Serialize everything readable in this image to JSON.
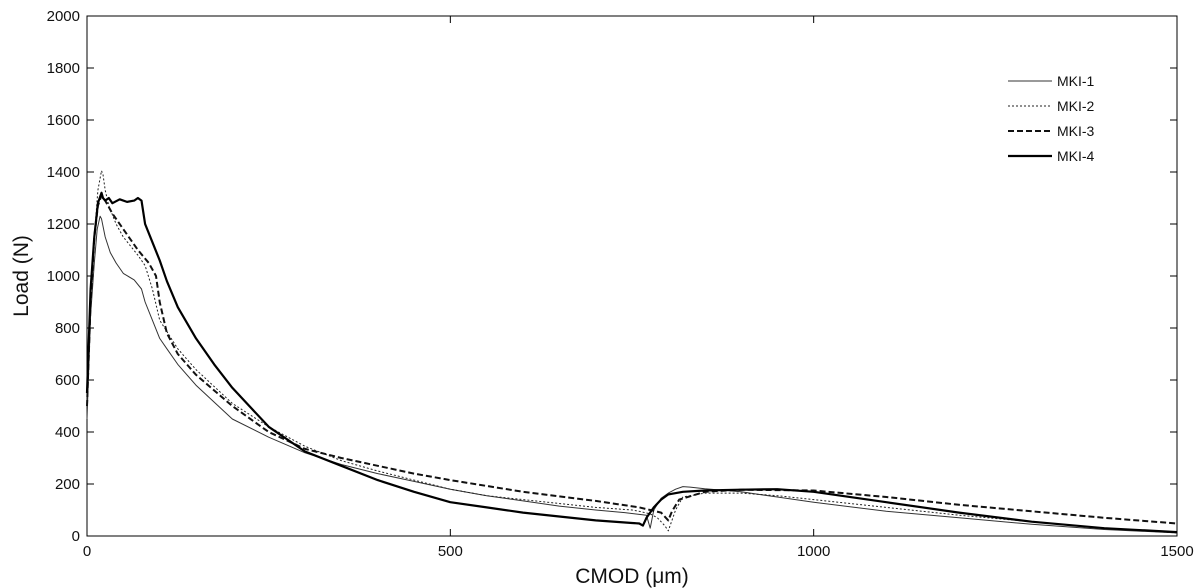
{
  "chart_data": {
    "type": "line",
    "title": "",
    "xlabel": "CMOD (μm)",
    "ylabel": "Load (N)",
    "xlim": [
      0,
      1500
    ],
    "ylim": [
      0,
      2000
    ],
    "xticks": [
      0,
      500,
      1000,
      1500
    ],
    "yticks": [
      0,
      200,
      400,
      600,
      800,
      1000,
      1200,
      1400,
      1600,
      1800,
      2000
    ],
    "grid": false,
    "legend_position": "top-right",
    "series": [
      {
        "name": "MKI-1",
        "style": "thin-solid",
        "x": [
          0,
          5,
          10,
          14,
          18,
          20,
          25,
          32,
          40,
          50,
          65,
          75,
          80,
          90,
          100,
          110,
          125,
          150,
          200,
          250,
          300,
          350,
          400,
          450,
          500,
          550,
          600,
          650,
          700,
          740,
          770,
          775,
          780,
          790,
          800,
          810,
          820,
          830,
          850,
          900,
          950,
          1000,
          1100,
          1200,
          1300,
          1400,
          1500
        ],
        "y": [
          450,
          850,
          1050,
          1180,
          1230,
          1220,
          1150,
          1090,
          1050,
          1010,
          985,
          950,
          900,
          830,
          760,
          720,
          660,
          580,
          450,
          380,
          320,
          275,
          240,
          210,
          180,
          155,
          135,
          115,
          100,
          90,
          80,
          30,
          100,
          145,
          165,
          180,
          190,
          188,
          182,
          170,
          150,
          130,
          95,
          70,
          45,
          25,
          12
        ]
      },
      {
        "name": "MKI-2",
        "style": "dotted",
        "x": [
          0,
          5,
          10,
          15,
          20,
          22,
          25,
          30,
          40,
          50,
          70,
          80,
          90,
          100,
          125,
          150,
          200,
          250,
          300,
          350,
          400,
          450,
          500,
          550,
          600,
          650,
          700,
          750,
          760,
          775,
          785,
          795,
          800,
          810,
          820,
          850,
          900,
          950,
          1000,
          1100,
          1200,
          1300,
          1400,
          1500
        ],
        "y": [
          500,
          900,
          1150,
          1330,
          1405,
          1390,
          1330,
          1270,
          1200,
          1150,
          1080,
          1040,
          950,
          830,
          720,
          640,
          510,
          420,
          345,
          290,
          250,
          215,
          180,
          155,
          140,
          125,
          110,
          100,
          95,
          85,
          70,
          40,
          20,
          100,
          150,
          165,
          165,
          155,
          140,
          110,
          80,
          55,
          30,
          12
        ]
      },
      {
        "name": "MKI-3",
        "style": "dashed",
        "x": [
          0,
          5,
          10,
          15,
          20,
          25,
          35,
          50,
          70,
          85,
          95,
          100,
          110,
          125,
          150,
          200,
          250,
          300,
          350,
          400,
          450,
          500,
          600,
          700,
          760,
          775,
          790,
          800,
          805,
          815,
          850,
          900,
          1000,
          1100,
          1200,
          1300,
          1400,
          1500
        ],
        "y": [
          500,
          900,
          1150,
          1270,
          1310,
          1290,
          1240,
          1180,
          1100,
          1050,
          1000,
          900,
          780,
          700,
          620,
          500,
          400,
          335,
          300,
          270,
          240,
          215,
          170,
          135,
          110,
          100,
          90,
          60,
          95,
          140,
          170,
          178,
          175,
          150,
          120,
          95,
          70,
          48
        ]
      },
      {
        "name": "MKI-4",
        "style": "thick-solid",
        "x": [
          0,
          5,
          10,
          15,
          20,
          22,
          25,
          30,
          35,
          45,
          55,
          65,
          70,
          75,
          80,
          90,
          100,
          110,
          125,
          150,
          175,
          200,
          250,
          300,
          350,
          400,
          450,
          500,
          550,
          600,
          650,
          700,
          750,
          760,
          765,
          770,
          780,
          790,
          800,
          820,
          850,
          900,
          950,
          1000,
          1100,
          1200,
          1300,
          1400,
          1500
        ],
        "y": [
          550,
          950,
          1150,
          1280,
          1320,
          1300,
          1290,
          1300,
          1280,
          1295,
          1285,
          1290,
          1300,
          1290,
          1200,
          1130,
          1060,
          980,
          880,
          760,
          660,
          570,
          420,
          325,
          270,
          215,
          170,
          130,
          110,
          90,
          75,
          60,
          50,
          48,
          40,
          70,
          110,
          140,
          160,
          170,
          175,
          178,
          180,
          170,
          130,
          90,
          55,
          30,
          15
        ]
      }
    ]
  }
}
